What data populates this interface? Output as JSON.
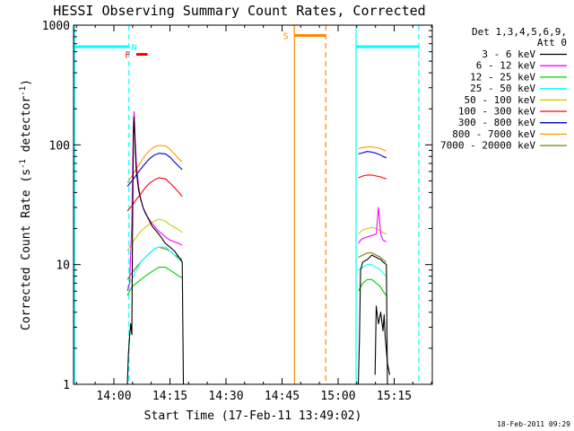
{
  "chart_data": {
    "type": "line",
    "title": "HESSI Observing Summary Count Rates, Corrected",
    "xlabel": "Start Time (17-Feb-11 13:49:02)",
    "ylabel": "Corrected Count Rate (s",
    "ylabel_sup1": "-1",
    "ylabel_mid": " detector",
    "ylabel_sup2": "-1",
    "ylabel_end": ")",
    "yscale": "log",
    "ylim": [
      1,
      1000
    ],
    "xlim": [
      13.82,
      15.42
    ],
    "x_unit": "hours UT",
    "x_ticks": [
      {
        "x": 14.0,
        "label": "14:00"
      },
      {
        "x": 14.25,
        "label": "14:15"
      },
      {
        "x": 14.5,
        "label": "14:30"
      },
      {
        "x": 14.75,
        "label": "14:45"
      },
      {
        "x": 15.0,
        "label": "15:00"
      },
      {
        "x": 15.25,
        "label": "15:15"
      }
    ],
    "y_ticks": [
      {
        "y": 1,
        "label": "1"
      },
      {
        "y": 10,
        "label": "10"
      },
      {
        "y": 100,
        "label": "100"
      },
      {
        "y": 1000,
        "label": "1000"
      }
    ],
    "legend": {
      "header1": "Det 1,3,4,5,6,9,",
      "header2": "Att 0",
      "placement": "right"
    },
    "datestamp": "18-Feb-2011 09:29",
    "series": [
      {
        "name": "3 - 6 keV",
        "color": "#000000",
        "segments": [
          [
            [
              14.06,
              1.0
            ],
            [
              14.065,
              1.8
            ],
            [
              14.07,
              2.5
            ],
            [
              14.075,
              3.2
            ],
            [
              14.08,
              2.6
            ],
            [
              14.083,
              20
            ],
            [
              14.087,
              120
            ],
            [
              14.09,
              170
            ],
            [
              14.095,
              90
            ],
            [
              14.1,
              60
            ],
            [
              14.11,
              42
            ],
            [
              14.12,
              35
            ],
            [
              14.13,
              30
            ],
            [
              14.14,
              27
            ],
            [
              14.15,
              25
            ],
            [
              14.17,
              21
            ],
            [
              14.2,
              18
            ],
            [
              14.23,
              15
            ],
            [
              14.25,
              14
            ],
            [
              14.27,
              13
            ],
            [
              14.29,
              11.5
            ],
            [
              14.305,
              10.5
            ],
            [
              14.31,
              1.0
            ]
          ],
          [
            [
              15.09,
              1.0
            ],
            [
              15.095,
              2.4
            ],
            [
              15.1,
              9
            ],
            [
              15.11,
              10.5
            ],
            [
              15.13,
              11
            ],
            [
              15.15,
              12
            ],
            [
              15.17,
              11.5
            ],
            [
              15.19,
              11
            ],
            [
              15.2,
              10.5
            ],
            [
              15.21,
              10.2
            ],
            [
              15.215,
              10
            ],
            [
              15.22,
              1.0
            ]
          ],
          [
            [
              15.165,
              1.2
            ],
            [
              15.17,
              4.5
            ],
            [
              15.18,
              3.2
            ],
            [
              15.19,
              4.0
            ],
            [
              15.2,
              2.8
            ],
            [
              15.205,
              3.8
            ],
            [
              15.21,
              2.5
            ],
            [
              15.215,
              1.9
            ],
            [
              15.22,
              1.5
            ],
            [
              15.23,
              1.2
            ]
          ]
        ]
      },
      {
        "name": "6 - 12 keV",
        "color": "#ff00ff",
        "segments": [
          [
            [
              14.06,
              6
            ],
            [
              14.07,
              7
            ],
            [
              14.08,
              22
            ],
            [
              14.087,
              150
            ],
            [
              14.09,
              190
            ],
            [
              14.095,
              110
            ],
            [
              14.1,
              70
            ],
            [
              14.11,
              45
            ],
            [
              14.12,
              35
            ],
            [
              14.13,
              30
            ],
            [
              14.15,
              25
            ],
            [
              14.17,
              22
            ],
            [
              14.2,
              19
            ],
            [
              14.23,
              17
            ],
            [
              14.25,
              16
            ],
            [
              14.27,
              15.5
            ],
            [
              14.29,
              15
            ],
            [
              14.305,
              14.5
            ]
          ],
          [
            [
              15.09,
              15
            ],
            [
              15.1,
              16
            ],
            [
              15.11,
              16.5
            ],
            [
              15.13,
              17
            ],
            [
              15.15,
              17.5
            ],
            [
              15.17,
              18
            ],
            [
              15.18,
              30
            ],
            [
              15.19,
              18
            ],
            [
              15.2,
              16
            ],
            [
              15.215,
              15.5
            ]
          ]
        ]
      },
      {
        "name": "12 - 25 keV",
        "color": "#00cc00",
        "segments": [
          [
            [
              14.06,
              5.5
            ],
            [
              14.08,
              6.5
            ],
            [
              14.1,
              7
            ],
            [
              14.12,
              7.5
            ],
            [
              14.14,
              8
            ],
            [
              14.16,
              8.5
            ],
            [
              14.18,
              9
            ],
            [
              14.2,
              9.5
            ],
            [
              14.23,
              9.5
            ],
            [
              14.25,
              9
            ],
            [
              14.27,
              8.5
            ],
            [
              14.29,
              8
            ],
            [
              14.305,
              7.8
            ]
          ],
          [
            [
              15.09,
              6
            ],
            [
              15.11,
              7
            ],
            [
              15.13,
              7.5
            ],
            [
              15.15,
              7.5
            ],
            [
              15.17,
              7
            ],
            [
              15.19,
              6.5
            ],
            [
              15.2,
              6
            ],
            [
              15.215,
              5.5
            ]
          ]
        ]
      },
      {
        "name": "25 - 50 keV",
        "color": "#00ffff",
        "segments": [
          [
            [
              14.06,
              6.5
            ],
            [
              14.08,
              7.5
            ],
            [
              14.1,
              9
            ],
            [
              14.12,
              10.5
            ],
            [
              14.14,
              11.5
            ],
            [
              14.16,
              12.5
            ],
            [
              14.18,
              13.5
            ],
            [
              14.2,
              14
            ],
            [
              14.23,
              14
            ],
            [
              14.25,
              13
            ],
            [
              14.27,
              12
            ],
            [
              14.29,
              11
            ],
            [
              14.305,
              10.5
            ]
          ],
          [
            [
              15.09,
              9
            ],
            [
              15.11,
              9.5
            ],
            [
              15.13,
              10
            ],
            [
              15.15,
              10
            ],
            [
              15.17,
              9.5
            ],
            [
              15.19,
              9
            ],
            [
              15.2,
              8.5
            ],
            [
              15.215,
              8
            ]
          ]
        ]
      },
      {
        "name": "50 - 100 keV",
        "color": "#cccc00",
        "segments": [
          [
            [
              14.06,
              13
            ],
            [
              14.08,
              15
            ],
            [
              14.1,
              17
            ],
            [
              14.12,
              19
            ],
            [
              14.14,
              20.5
            ],
            [
              14.16,
              22
            ],
            [
              14.18,
              23
            ],
            [
              14.2,
              24
            ],
            [
              14.23,
              23
            ],
            [
              14.25,
              21.5
            ],
            [
              14.27,
              20.5
            ],
            [
              14.29,
              19.5
            ],
            [
              14.305,
              18.5
            ]
          ],
          [
            [
              15.09,
              18
            ],
            [
              15.11,
              19.5
            ],
            [
              15.13,
              20
            ],
            [
              15.15,
              20.5
            ],
            [
              15.17,
              20
            ],
            [
              15.19,
              19
            ],
            [
              15.2,
              18.5
            ],
            [
              15.215,
              18
            ]
          ]
        ]
      },
      {
        "name": "100 - 300 keV",
        "color": "#ff0000",
        "segments": [
          [
            [
              14.06,
              28
            ],
            [
              14.08,
              31
            ],
            [
              14.1,
              35
            ],
            [
              14.12,
              39
            ],
            [
              14.14,
              44
            ],
            [
              14.16,
              48
            ],
            [
              14.18,
              51
            ],
            [
              14.2,
              53
            ],
            [
              14.23,
              52
            ],
            [
              14.25,
              48
            ],
            [
              14.27,
              44
            ],
            [
              14.29,
              40
            ],
            [
              14.305,
              37
            ]
          ],
          [
            [
              15.09,
              53
            ],
            [
              15.11,
              55
            ],
            [
              15.13,
              56
            ],
            [
              15.15,
              56
            ],
            [
              15.17,
              55
            ],
            [
              15.19,
              54
            ],
            [
              15.2,
              53
            ],
            [
              15.215,
              52
            ]
          ]
        ]
      },
      {
        "name": "300 - 800 keV",
        "color": "#0000cc",
        "segments": [
          [
            [
              14.06,
              45
            ],
            [
              14.08,
              50
            ],
            [
              14.1,
              56
            ],
            [
              14.12,
              63
            ],
            [
              14.14,
              70
            ],
            [
              14.16,
              77
            ],
            [
              14.18,
              82
            ],
            [
              14.2,
              85
            ],
            [
              14.23,
              84
            ],
            [
              14.25,
              79
            ],
            [
              14.27,
              72
            ],
            [
              14.29,
              66
            ],
            [
              14.305,
              62
            ]
          ],
          [
            [
              15.09,
              84
            ],
            [
              15.11,
              86
            ],
            [
              15.13,
              88
            ],
            [
              15.15,
              87
            ],
            [
              15.17,
              85
            ],
            [
              15.19,
              82
            ],
            [
              15.2,
              80
            ],
            [
              15.215,
              78
            ]
          ]
        ]
      },
      {
        "name": "800 - 7000 keV",
        "color": "#ff9900",
        "segments": [
          [
            [
              14.06,
              48
            ],
            [
              14.08,
              55
            ],
            [
              14.1,
              63
            ],
            [
              14.12,
              72
            ],
            [
              14.14,
              82
            ],
            [
              14.16,
              90
            ],
            [
              14.18,
              96
            ],
            [
              14.2,
              99
            ],
            [
              14.23,
              98
            ],
            [
              14.25,
              92
            ],
            [
              14.27,
              84
            ],
            [
              14.29,
              76
            ],
            [
              14.305,
              72
            ]
          ],
          [
            [
              15.09,
              93
            ],
            [
              15.11,
              95
            ],
            [
              15.13,
              96
            ],
            [
              15.15,
              96
            ],
            [
              15.17,
              95
            ],
            [
              15.19,
              93
            ],
            [
              15.2,
              91
            ],
            [
              15.215,
              89
            ]
          ]
        ]
      },
      {
        "name": "7000 - 20000 keV",
        "color": "#808000",
        "segments": [
          [
            [
              14.06,
              7.5
            ],
            [
              14.08,
              8.5
            ],
            [
              14.1,
              9.5
            ],
            [
              14.12,
              10.5
            ],
            [
              14.14,
              11.5
            ],
            [
              14.16,
              12.5
            ],
            [
              14.18,
              13.5
            ],
            [
              14.2,
              14
            ],
            [
              14.23,
              13.5
            ],
            [
              14.25,
              13
            ],
            [
              14.27,
              12
            ],
            [
              14.29,
              11.5
            ],
            [
              14.305,
              11
            ]
          ],
          [
            [
              15.09,
              11.5
            ],
            [
              15.11,
              12
            ],
            [
              15.13,
              12.5
            ],
            [
              15.15,
              12.5
            ],
            [
              15.17,
              12
            ],
            [
              15.19,
              11.5
            ],
            [
              15.2,
              11
            ],
            [
              15.215,
              10.5
            ]
          ]
        ]
      }
    ],
    "flags": {
      "saa_solid": [
        13.825,
        15.08
      ],
      "saa_dashed": [
        14.067,
        15.36
      ],
      "saa_bars": [
        [
          13.825,
          14.067
        ],
        [
          15.08,
          15.36
        ]
      ],
      "saa_bar_y": 660,
      "saa_label": "N",
      "saa_label_x": 14.09,
      "flare_bar": [
        14.1,
        14.15
      ],
      "flare_bar_y": 570,
      "flare_label": "F",
      "flare_label_x": 14.085,
      "flare_color": "#ff0000",
      "saa_color": "#00ffff",
      "orbit_solid": 14.805,
      "orbit_dashed": 14.945,
      "orbit_bar": [
        14.805,
        14.945
      ],
      "orbit_bar_y": 820,
      "orbit_label": "S",
      "orbit_label_x": 14.79,
      "orbit_color": "#ff8800"
    }
  }
}
